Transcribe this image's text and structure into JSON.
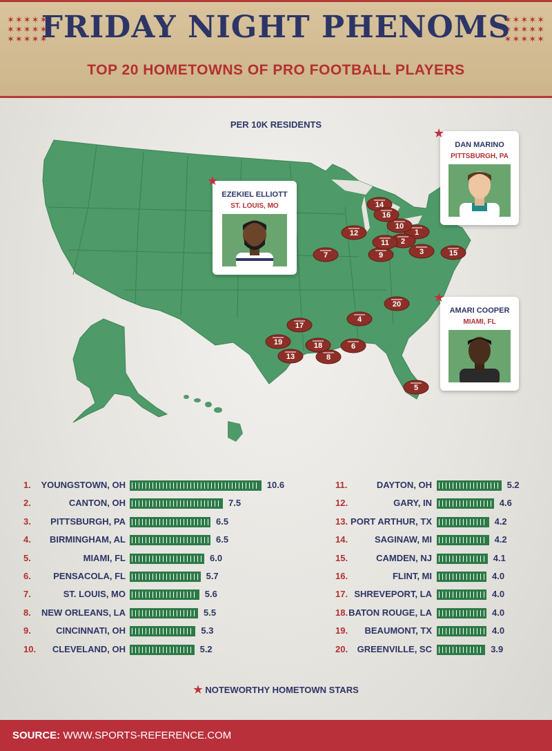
{
  "header": {
    "title": "FRIDAY NIGHT PHENOMS",
    "subtitle": "TOP 20 HOMETOWNS OF PRO FOOTBALL PLAYERS"
  },
  "map": {
    "caption": "PER 10K RESIDENTS",
    "land_color": "#4e9a68",
    "football_color": "#8e2f27"
  },
  "stars": [
    {
      "name": "EZEKIEL ELLIOTT",
      "place": "ST. LOUIS, MO",
      "jersey": "cowboys"
    },
    {
      "name": "DAN MARINO",
      "place": "PITTSBURGH, PA",
      "jersey": "dolphins"
    },
    {
      "name": "AMARI COOPER",
      "place": "MIAMI, FL",
      "jersey": "raiders"
    }
  ],
  "chart_data": {
    "type": "bar",
    "title": "TOP 20 HOMETOWNS OF PRO FOOTBALL PLAYERS",
    "unit": "PER 10K RESIDENTS",
    "categories": [
      "YOUNGSTOWN, OH",
      "CANTON, OH",
      "PITTSBURGH, PA",
      "BIRMINGHAM, AL",
      "MIAMI, FL",
      "PENSACOLA, FL",
      "ST. LOUIS, MO",
      "NEW ORLEANS, LA",
      "CINCINNATI, OH",
      "CLEVELAND, OH",
      "DAYTON, OH",
      "GARY, IN",
      "PORT ARTHUR, TX",
      "SAGINAW, MI",
      "CAMDEN, NJ",
      "FLINT, MI",
      "SHREVEPORT, LA",
      "BATON ROUGE, LA",
      "BEAUMONT, TX",
      "GREENVILLE, SC"
    ],
    "ranks": [
      "1.",
      "2.",
      "3.",
      "4.",
      "5.",
      "6.",
      "7.",
      "8.",
      "9.",
      "10.",
      "11.",
      "12.",
      "13.",
      "14.",
      "15.",
      "16.",
      "17.",
      "18.",
      "19.",
      "20."
    ],
    "values": [
      10.6,
      7.5,
      6.5,
      6.5,
      6.0,
      5.7,
      5.6,
      5.5,
      5.3,
      5.2,
      5.2,
      4.6,
      4.2,
      4.2,
      4.1,
      4.0,
      4.0,
      4.0,
      4.0,
      3.9
    ],
    "value_labels": [
      "10.6",
      "7.5",
      "6.5",
      "6.5",
      "6.0",
      "5.7",
      "5.6",
      "5.5",
      "5.3",
      "5.2",
      "5.2",
      "4.6",
      "4.2",
      "4.2",
      "4.1",
      "4.0",
      "4.0",
      "4.0",
      "4.0",
      "3.9"
    ],
    "bar_color": "#2c7a47"
  },
  "legend": {
    "label": "NOTEWORTHY HOMETOWN STARS"
  },
  "footer": {
    "source_label": "SOURCE:",
    "source_url": "WWW.SPORTS-REFERENCE.COM"
  }
}
